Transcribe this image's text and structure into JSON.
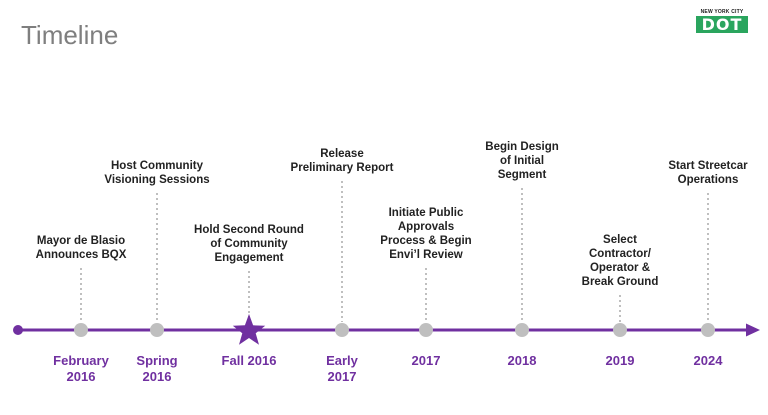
{
  "header": {
    "title": "Timeline",
    "logo_top": "NEW YORK CITY",
    "logo_main": "DOT"
  },
  "colors": {
    "accent": "#7030a0",
    "marker": "#bfbfbf",
    "connector": "#bfbfbf",
    "title": "#7f7f7f",
    "logo_green": "#2aa55e"
  },
  "milestones": [
    {
      "date": [
        "February",
        "2016"
      ],
      "event": [
        "Mayor de Blasio",
        "Announces BQX"
      ],
      "marker": "dot"
    },
    {
      "date": [
        "Spring",
        "2016"
      ],
      "event": [
        "Host Community",
        "Visioning Sessions"
      ],
      "marker": "dot"
    },
    {
      "date": [
        "Fall 2016"
      ],
      "event": [
        "Hold Second Round",
        "of Community",
        "Engagement"
      ],
      "marker": "star"
    },
    {
      "date": [
        "Early",
        "2017"
      ],
      "event": [
        "Release",
        "Preliminary Report"
      ],
      "marker": "dot"
    },
    {
      "date": [
        "2017"
      ],
      "event": [
        "Initiate Public",
        "Approvals",
        "Process & Begin",
        "Envi’l Review"
      ],
      "marker": "dot"
    },
    {
      "date": [
        "2018"
      ],
      "event": [
        "Begin Design",
        "of Initial",
        "Segment"
      ],
      "marker": "dot"
    },
    {
      "date": [
        "2019"
      ],
      "event": [
        "Select",
        "Contractor/",
        "Operator &",
        "Break Ground"
      ],
      "marker": "dot"
    },
    {
      "date": [
        "2024"
      ],
      "event": [
        "Start Streetcar",
        "Operations"
      ],
      "marker": "dot"
    }
  ]
}
